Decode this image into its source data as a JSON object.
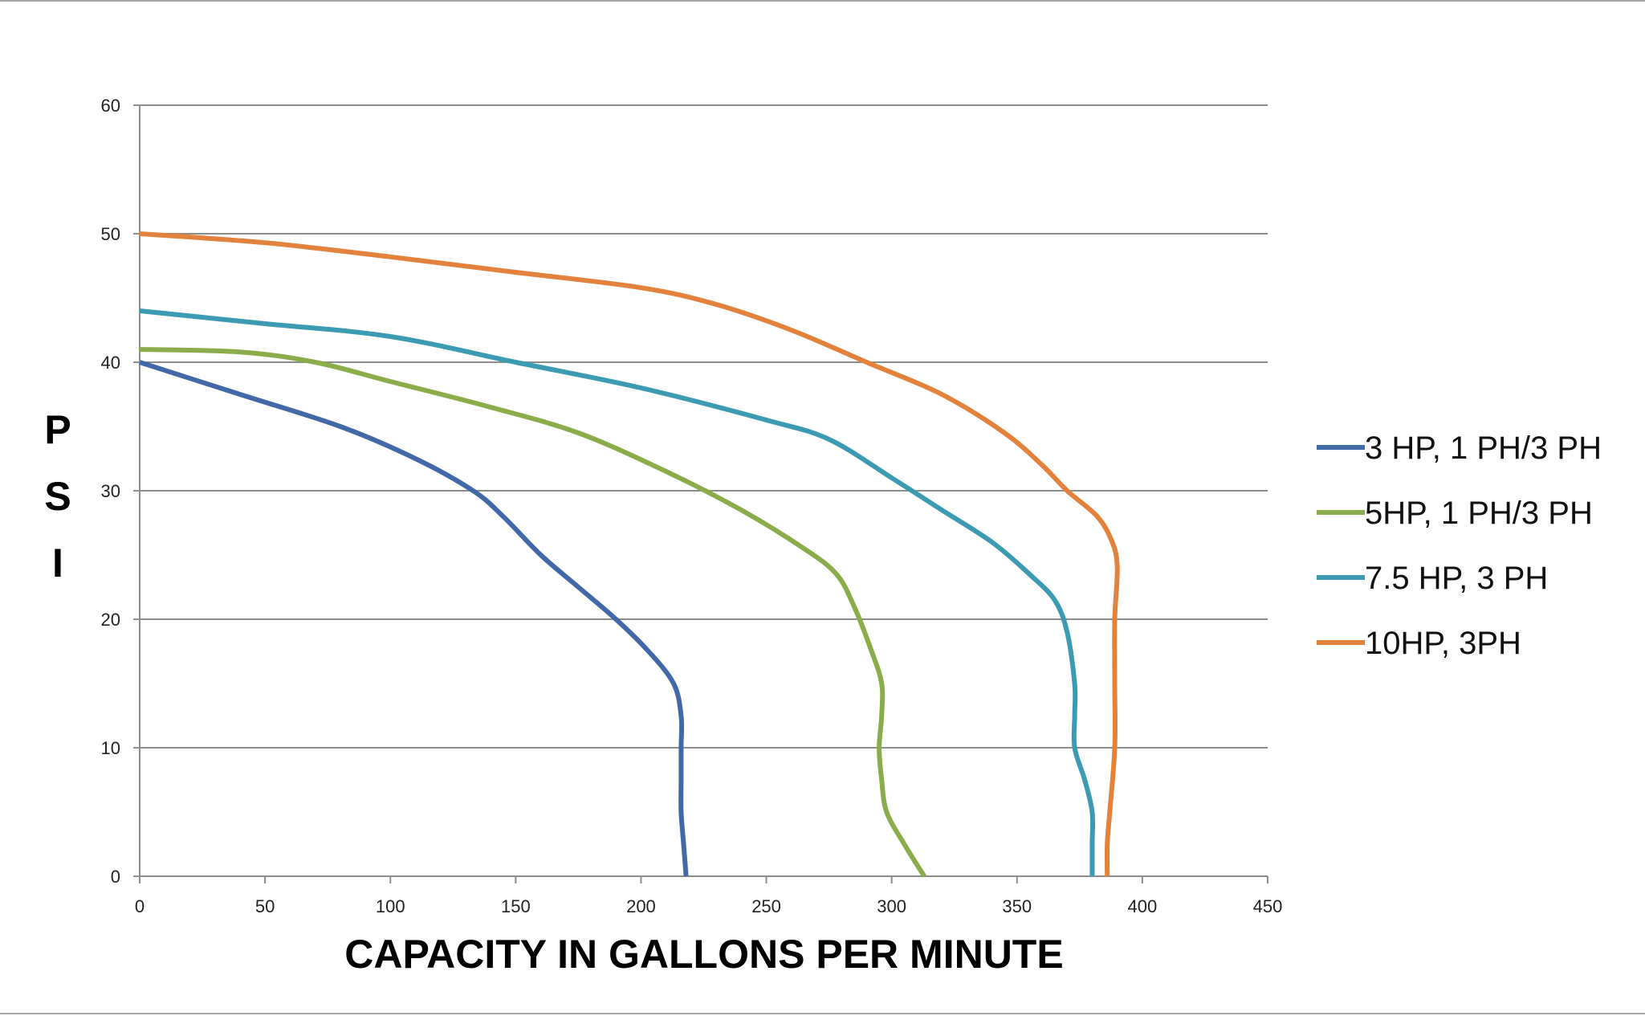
{
  "chart_data": {
    "type": "line",
    "title": "",
    "xlabel": "CAPACITY IN GALLONS PER MINUTE",
    "ylabel": "PSI",
    "xlim": [
      0,
      450
    ],
    "ylim": [
      0,
      60
    ],
    "xticks": [
      0,
      50,
      100,
      150,
      200,
      250,
      300,
      350,
      400,
      450
    ],
    "yticks": [
      0,
      10,
      20,
      30,
      40,
      50,
      60
    ],
    "grid": "horizontal",
    "legend_position": "right",
    "series": [
      {
        "name": "3 HP, 1 PH/3 PH",
        "color": "#4169a8",
        "points": [
          [
            0,
            40
          ],
          [
            40,
            37.5
          ],
          [
            80,
            35
          ],
          [
            110,
            32.5
          ],
          [
            133,
            30
          ],
          [
            145,
            28
          ],
          [
            160,
            25
          ],
          [
            175,
            22.5
          ],
          [
            190,
            20
          ],
          [
            203,
            17.5
          ],
          [
            213,
            15
          ],
          [
            216,
            12.5
          ],
          [
            216,
            10
          ],
          [
            216,
            7.5
          ],
          [
            216,
            5
          ],
          [
            217,
            2.5
          ],
          [
            218,
            0
          ]
        ]
      },
      {
        "name": "5HP, 1 PH/3 PH",
        "color": "#8bac4a",
        "points": [
          [
            0,
            41
          ],
          [
            40,
            40.8
          ],
          [
            70,
            40
          ],
          [
            100,
            38.5
          ],
          [
            140,
            36.5
          ],
          [
            175,
            34.5
          ],
          [
            210,
            31.5
          ],
          [
            240,
            28.5
          ],
          [
            265,
            25.5
          ],
          [
            278,
            23.5
          ],
          [
            285,
            21
          ],
          [
            292,
            17.5
          ],
          [
            296,
            15
          ],
          [
            296,
            12.5
          ],
          [
            295,
            10
          ],
          [
            296,
            7.5
          ],
          [
            298,
            5
          ],
          [
            305,
            2.5
          ],
          [
            313,
            0
          ]
        ]
      },
      {
        "name": "7.5 HP, 3 PH",
        "color": "#3c9ab2",
        "points": [
          [
            0,
            44
          ],
          [
            50,
            43
          ],
          [
            100,
            42
          ],
          [
            150,
            40
          ],
          [
            200,
            38
          ],
          [
            250,
            35.5
          ],
          [
            275,
            34
          ],
          [
            300,
            31
          ],
          [
            320,
            28.5
          ],
          [
            340,
            26
          ],
          [
            355,
            23.5
          ],
          [
            365,
            21.5
          ],
          [
            370,
            19
          ],
          [
            373,
            15
          ],
          [
            373,
            12.5
          ],
          [
            373,
            10
          ],
          [
            377,
            7.5
          ],
          [
            380,
            5
          ],
          [
            380,
            2.5
          ],
          [
            380,
            0
          ]
        ]
      },
      {
        "name": "10HP, 3PH",
        "color": "#e2823c",
        "points": [
          [
            0,
            50
          ],
          [
            50,
            49.3
          ],
          [
            100,
            48.2
          ],
          [
            150,
            47
          ],
          [
            200,
            45.8
          ],
          [
            230,
            44.5
          ],
          [
            260,
            42.5
          ],
          [
            290,
            40
          ],
          [
            320,
            37.5
          ],
          [
            345,
            34.5
          ],
          [
            360,
            32
          ],
          [
            370,
            30
          ],
          [
            382,
            28
          ],
          [
            388,
            26
          ],
          [
            390,
            24
          ],
          [
            389,
            20
          ],
          [
            389,
            15
          ],
          [
            389,
            10
          ],
          [
            387,
            5
          ],
          [
            386,
            2.5
          ],
          [
            386,
            0
          ]
        ]
      }
    ]
  }
}
